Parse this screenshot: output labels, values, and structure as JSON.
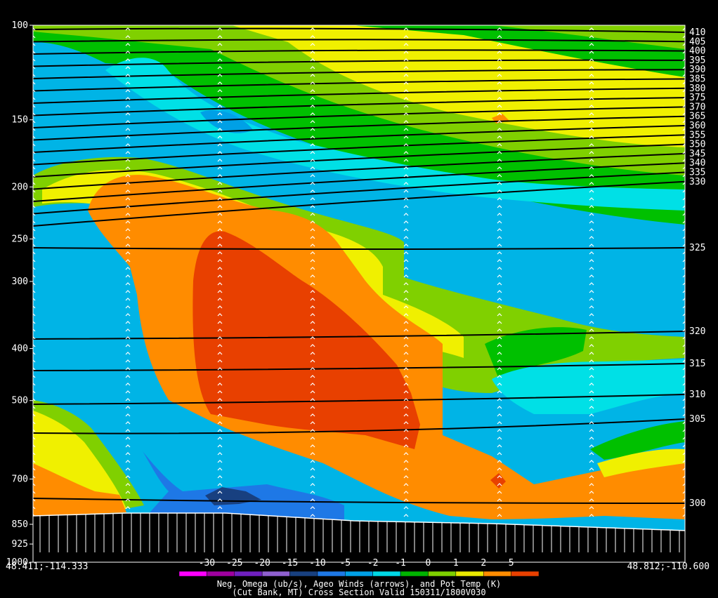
{
  "chart_data": {
    "type": "heatmap",
    "title": "Neg. Omega (ub/s), Ageo Winds (arrows), and Pot Temp (K)",
    "subtitle": "(Cut Bank, MT) Cross Section Valid 150311/1800V030",
    "left_endpoint": "48.411;-114.333",
    "right_endpoint": "48.812;-110.600",
    "y_axis": {
      "scale": "log",
      "units": "hPa",
      "inverted": true,
      "range": [
        1000,
        100
      ],
      "ticks": [
        "100",
        "150",
        "200",
        "250",
        "300",
        "400",
        "500",
        "700",
        "850",
        "925",
        "1000"
      ]
    },
    "colorbar": {
      "labels": [
        "-30",
        "-25",
        "-20",
        "-15",
        "-10",
        "-5",
        "-2",
        "-1",
        "0",
        "1",
        "2",
        "5"
      ],
      "colors": [
        "#ff00ff",
        "#a000a0",
        "#7020c0",
        "#9060d0",
        "#184080",
        "#1e78e6",
        "#00a0e6",
        "#00d8e6",
        "#00b400",
        "#7ed000",
        "#e8e800",
        "#ff8c00",
        "#e84000"
      ]
    },
    "theta_contours": [
      "410",
      "405",
      "400",
      "395",
      "390",
      "385",
      "380",
      "375",
      "370",
      "365",
      "360",
      "355",
      "350",
      "345",
      "340",
      "335",
      "330",
      "325",
      "320",
      "315",
      "310",
      "305",
      "300"
    ],
    "grid": false
  },
  "colors": {
    "background": "#000000",
    "terrain": "#ffffff",
    "contour": "#000000",
    "arrow": "#ffffff"
  }
}
